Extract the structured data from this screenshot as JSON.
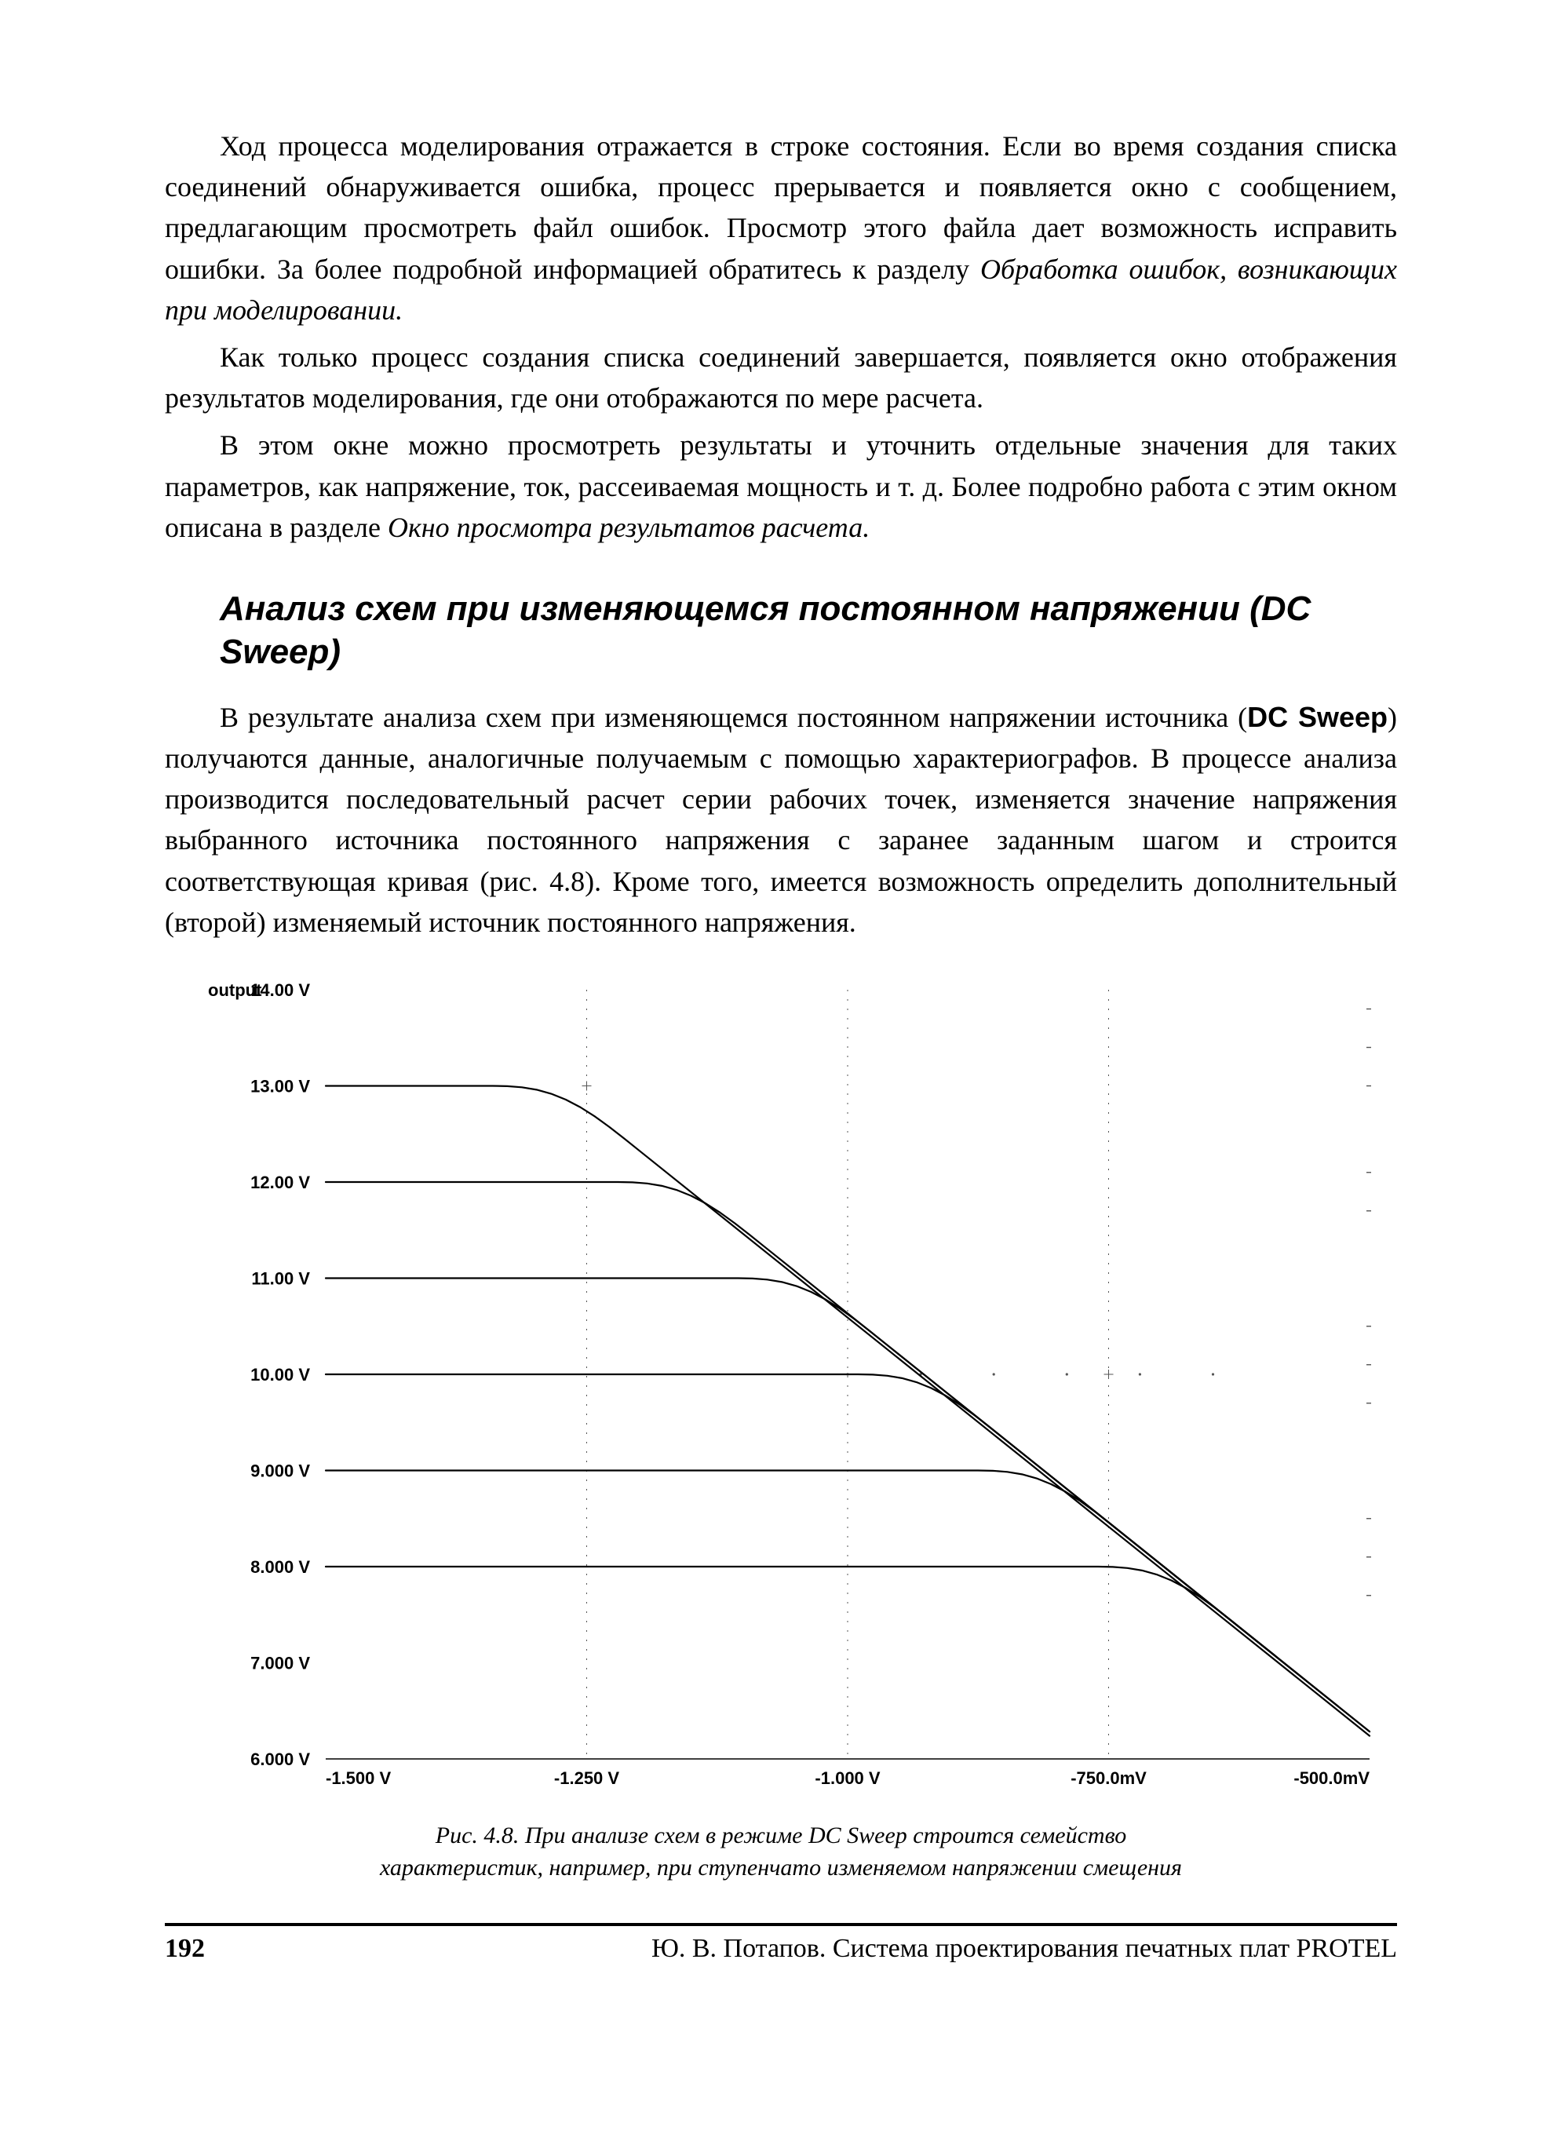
{
  "paragraphs": {
    "p1_a": "Ход процесса моделирования отражается в строке состояния. Если во время создания списка соединений обнаруживается ошибка, процесс прерывается и появляется окно с сообщением, предлагающим просмотреть файл ошибок. Просмотр этого файла дает возможность исправить ошибки. За более подробной информацией обратитесь к разделу ",
    "p1_i": "Обработка ошибок, возникающих при моделировании.",
    "p2": "Как только процесс создания списка соединений завершается, появляется окно отображения результатов моделирования, где они отображаются по мере расчета.",
    "p3_a": "В этом окне можно просмотреть результаты и уточнить отдельные значения для таких параметров, как напряжение, ток, рассеиваемая мощность и т. д. Более подробно работа с этим окном описана в разделе ",
    "p3_i": "Окно просмотра результатов расчета.",
    "p4_a": "В результате анализа схем при изменяющемся постоянном напряжении источника (",
    "p4_b": "DC Sweep",
    "p4_c": ") получаются данные, аналогичные получаемым с помощью характериографов. В процессе анализа производится последовательный расчет серии рабочих точек, изменяется значение напряжения выбранного источника постоянного напряжения с заранее заданным шагом и строится соответствующая кривая (рис. 4.8). Кроме того, имеется возможность определить дополнительный (второй) изменяемый источник постоянного напряжения."
  },
  "heading": "Анализ схем при изменяющемся постоянном напряжении (DC Sweep)",
  "figure": {
    "caption_l1": "Рис. 4.8. При анализе схем в режиме DC Sweep строится семейство",
    "caption_l2": "характеристик, например, при ступенчато изменяемом напряжении смещения",
    "chart": {
      "type": "line",
      "output_label": "output",
      "xlim": [
        -1.5,
        -0.5
      ],
      "ylim": [
        6.0,
        14.0
      ],
      "xticks": [
        {
          "v": -1.5,
          "label": "-1.500 V"
        },
        {
          "v": -1.25,
          "label": "-1.250 V"
        },
        {
          "v": -1.0,
          "label": "-1.000 V"
        },
        {
          "v": -0.75,
          "label": "-750.0mV"
        },
        {
          "v": -0.5,
          "label": "-500.0mV"
        }
      ],
      "yticks": [
        {
          "v": 6.0,
          "label": "6.000 V"
        },
        {
          "v": 7.0,
          "label": "7.000 V"
        },
        {
          "v": 8.0,
          "label": "8.000 V"
        },
        {
          "v": 9.0,
          "label": "9.000 V"
        },
        {
          "v": 10.0,
          "label": "10.00 V"
        },
        {
          "v": 11.0,
          "label": "11.00 V"
        },
        {
          "v": 12.0,
          "label": "12.00 V"
        },
        {
          "v": 13.0,
          "label": "13.00 V"
        },
        {
          "v": 14.0,
          "label": "14.00 V"
        }
      ],
      "vgrid_x": [
        -1.25,
        -1.0,
        -0.75
      ],
      "dot_row": {
        "y": 10.0,
        "x": [
          -1.0,
          -0.93,
          -0.86,
          -0.79,
          -0.72,
          -0.65
        ]
      },
      "right_dash_segments_y": [
        13.8,
        13.4,
        13.0,
        12.1,
        11.7,
        10.5,
        10.1,
        9.7,
        8.5,
        8.1,
        7.7
      ],
      "series_color": "#000000",
      "grid_color": "#555555",
      "axis_color": "#000000",
      "background_color": "#ffffff",
      "tick_fontsize": 22,
      "label_fontsize": 22,
      "line_width": 2.2,
      "series": [
        {
          "flat_y": 13.0,
          "knee_x": -1.27,
          "slope": -8.7,
          "x_end": -0.5
        },
        {
          "flat_y": 12.0,
          "knee_x": -1.15,
          "slope": -8.7,
          "x_end": -0.5
        },
        {
          "flat_y": 11.0,
          "knee_x": -1.035,
          "slope": -8.7,
          "x_end": -0.5
        },
        {
          "flat_y": 10.0,
          "knee_x": -0.92,
          "slope": -8.7,
          "x_end": -0.53
        },
        {
          "flat_y": 9.0,
          "knee_x": -0.805,
          "slope": -8.7,
          "x_end": -0.56
        },
        {
          "flat_y": 8.0,
          "knee_x": -0.69,
          "slope": -8.7,
          "x_end": -0.59
        }
      ]
    }
  },
  "footer": {
    "page_number": "192",
    "running_title": "Ю. В. Потапов. Система проектирования печатных плат PROTEL"
  }
}
